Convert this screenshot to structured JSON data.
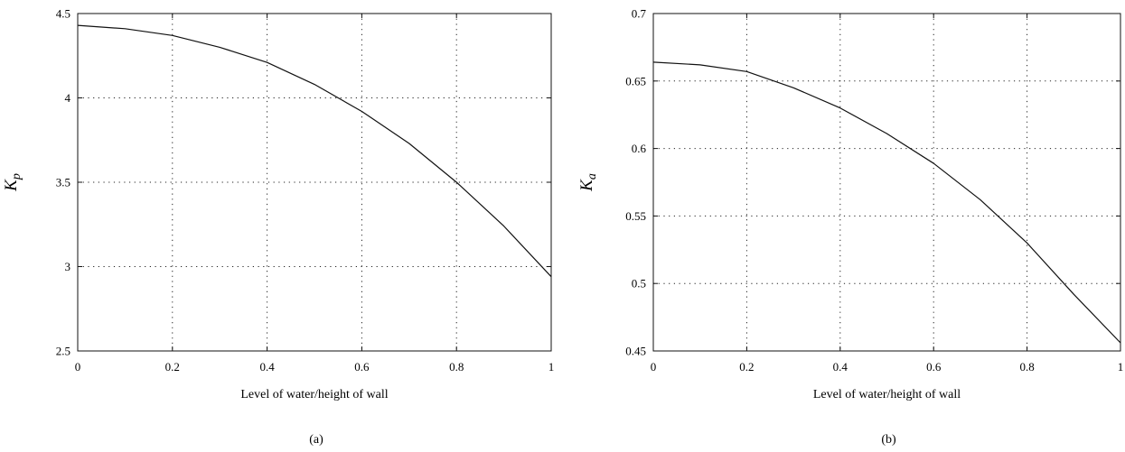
{
  "chart_data": [
    {
      "type": "line",
      "panel_label": "(a)",
      "xlabel": "Level of water/height of wall",
      "ylabel_main": "K",
      "ylabel_sub": "p",
      "xlim": [
        0,
        1
      ],
      "ylim": [
        2.5,
        4.5
      ],
      "xticks": [
        "0",
        "0.2",
        "0.4",
        "0.6",
        "0.8",
        "1"
      ],
      "yticks": [
        "2.5",
        "3",
        "3.5",
        "4",
        "4.5"
      ],
      "grid": "dotted",
      "series": [
        {
          "x": [
            0,
            0.1,
            0.2,
            0.3,
            0.4,
            0.5,
            0.6,
            0.7,
            0.8,
            0.9,
            1.0
          ],
          "y": [
            4.43,
            4.41,
            4.37,
            4.3,
            4.21,
            4.08,
            3.92,
            3.73,
            3.5,
            3.24,
            2.94
          ]
        }
      ]
    },
    {
      "type": "line",
      "panel_label": "(b)",
      "xlabel": "Level of water/height of wall",
      "ylabel_main": "K",
      "ylabel_sub": "a",
      "xlim": [
        0,
        1
      ],
      "ylim": [
        0.45,
        0.7
      ],
      "xticks": [
        "0",
        "0.2",
        "0.4",
        "0.6",
        "0.8",
        "1"
      ],
      "yticks": [
        "0.45",
        "0.5",
        "0.55",
        "0.6",
        "0.65",
        "0.7"
      ],
      "grid": "dotted",
      "series": [
        {
          "x": [
            0,
            0.1,
            0.2,
            0.3,
            0.4,
            0.5,
            0.6,
            0.7,
            0.8,
            0.9,
            1.0
          ],
          "y": [
            0.664,
            0.662,
            0.657,
            0.645,
            0.63,
            0.611,
            0.589,
            0.562,
            0.53,
            0.492,
            0.456
          ]
        }
      ]
    }
  ]
}
